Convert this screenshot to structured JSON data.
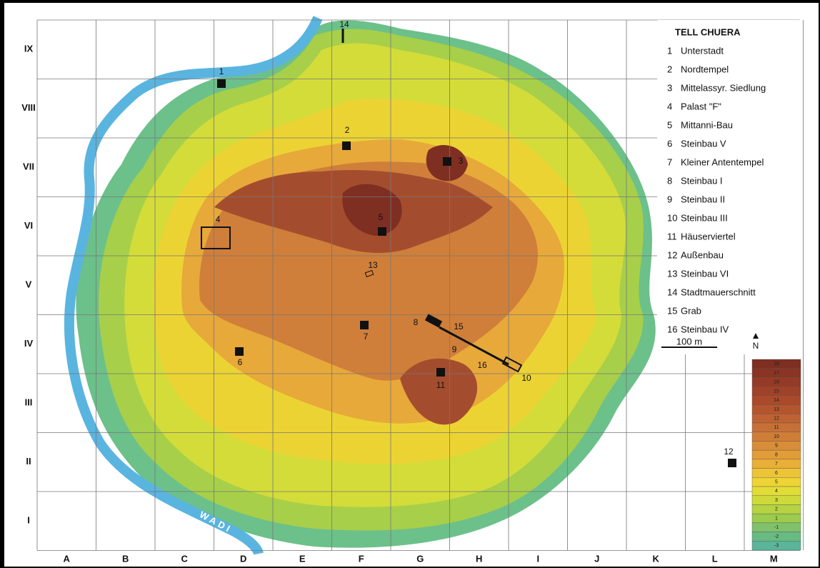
{
  "legend": {
    "title": "TELL CHUERA",
    "items": [
      {
        "number": "1",
        "label": "Unterstadt"
      },
      {
        "number": "2",
        "label": "Nordtempel"
      },
      {
        "number": "3",
        "label": "Mittelassyr. Siedlung"
      },
      {
        "number": "4",
        "label": "Palast \"F\""
      },
      {
        "number": "5",
        "label": "Mittanni-Bau"
      },
      {
        "number": "6",
        "label": "Steinbau V"
      },
      {
        "number": "7",
        "label": "Kleiner Antentempel"
      },
      {
        "number": "8",
        "label": "Steinbau I"
      },
      {
        "number": "9",
        "label": "Steinbau II"
      },
      {
        "number": "10",
        "label": "Steinbau III"
      },
      {
        "number": "11",
        "label": "Häuserviertel"
      },
      {
        "number": "12",
        "label": "Außenbau"
      },
      {
        "number": "13",
        "label": "Steinbau VI"
      },
      {
        "number": "14",
        "label": "Stadtmauerschnitt"
      },
      {
        "number": "15",
        "label": "Grab"
      },
      {
        "number": "16",
        "label": "Steinbau IV"
      }
    ],
    "scale_bar": "100 m",
    "north": "N"
  },
  "grid": {
    "columns": [
      "A",
      "B",
      "C",
      "D",
      "E",
      "F",
      "G",
      "H",
      "I",
      "J",
      "K",
      "L",
      "M"
    ],
    "rows": [
      "IX",
      "VIII",
      "VII",
      "VI",
      "V",
      "IV",
      "III",
      "II",
      "I"
    ]
  },
  "map_labels": {
    "wadi": "WADI",
    "sites": [
      "1",
      "2",
      "3",
      "4",
      "5",
      "6",
      "7",
      "8",
      "9",
      "10",
      "11",
      "12",
      "13",
      "14",
      "15",
      "16"
    ]
  },
  "elevation_scale": {
    "labels": [
      "18",
      "17",
      "16",
      "15",
      "14",
      "13",
      "12",
      "11",
      "10",
      "9",
      "8",
      "7",
      "6",
      "5",
      "4",
      "3",
      "2",
      "1",
      "-1",
      "-2",
      "-3"
    ]
  }
}
